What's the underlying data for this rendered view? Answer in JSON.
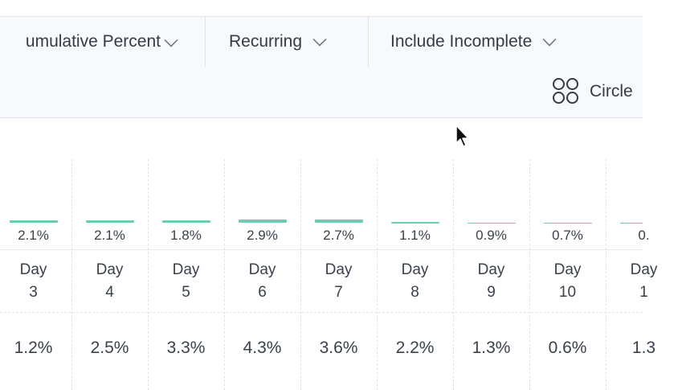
{
  "toolbar": {
    "dropdowns": [
      {
        "label": "umulative Percent"
      },
      {
        "label": "Recurring"
      },
      {
        "label": "Include Incomplete"
      }
    ],
    "circle_button": {
      "label": "Circle"
    }
  },
  "columns": [
    {
      "day": "Day",
      "num": "3",
      "bar_percent": "2.1%",
      "value": "1.2%"
    },
    {
      "day": "Day",
      "num": "4",
      "bar_percent": "2.1%",
      "value": "2.5%"
    },
    {
      "day": "Day",
      "num": "5",
      "bar_percent": "1.8%",
      "value": "3.3%"
    },
    {
      "day": "Day",
      "num": "6",
      "bar_percent": "2.9%",
      "value": "4.3%"
    },
    {
      "day": "Day",
      "num": "7",
      "bar_percent": "2.7%",
      "value": "3.6%"
    },
    {
      "day": "Day",
      "num": "8",
      "bar_percent": "1.1%",
      "value": "2.2%"
    },
    {
      "day": "Day",
      "num": "9",
      "bar_percent": "0.9%",
      "value": "1.3%"
    },
    {
      "day": "Day",
      "num": "10",
      "bar_percent": "0.7%",
      "value": "0.6%"
    },
    {
      "day": "Day",
      "num": "1",
      "bar_percent": "0.",
      "value": "1.3"
    }
  ],
  "colors": {
    "bar": "#6ccbb0"
  }
}
